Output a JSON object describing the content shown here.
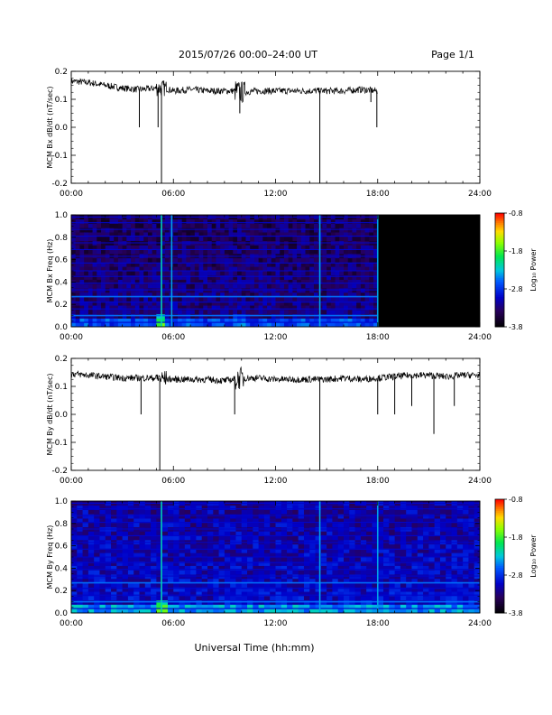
{
  "header": {
    "title": "2015/07/26  00:00–24:00 UT",
    "page": "Page 1/1"
  },
  "xaxis": {
    "label": "Universal Time (hh:mm)",
    "ticks": [
      "00:00",
      "06:00",
      "12:00",
      "18:00",
      "24:00"
    ],
    "range_hours": [
      0,
      24
    ]
  },
  "colorbar": {
    "title": "Log₁₀ Power",
    "ticks": [
      "-0.8",
      "-1.8",
      "-2.8",
      "-3.8"
    ],
    "range": [
      -3.8,
      -0.8
    ]
  },
  "chart_data": [
    {
      "type": "line",
      "ylabel": "MCM Bx dB/dt (nT/sec)",
      "yticks": [
        "0.2",
        "0.1",
        "0.0",
        "-0.1",
        "-0.2"
      ],
      "ylim": [
        -0.2,
        0.2
      ],
      "data_end_hour": 18.0,
      "series": [
        {
          "x": [
            0,
            1,
            2,
            3,
            4,
            5,
            5.5,
            6,
            7,
            8,
            9,
            9.7,
            10,
            11,
            12,
            13,
            14,
            15,
            16,
            17,
            18
          ],
          "y": [
            0.165,
            0.16,
            0.15,
            0.14,
            0.135,
            0.14,
            0.14,
            0.13,
            0.135,
            0.13,
            0.13,
            0.13,
            0.125,
            0.13,
            0.13,
            0.13,
            0.13,
            0.13,
            0.13,
            0.135,
            0.13
          ]
        }
      ],
      "spikes": [
        {
          "x": 4.0,
          "y": 0.0
        },
        {
          "x": 5.1,
          "y": 0.0
        },
        {
          "x": 5.3,
          "y": -0.2
        },
        {
          "x": 9.9,
          "y": 0.05
        },
        {
          "x": 14.6,
          "y": -0.2
        },
        {
          "x": 17.6,
          "y": 0.09
        },
        {
          "x": 17.95,
          "y": 0.0
        }
      ]
    },
    {
      "type": "heatmap",
      "ylabel": "MCM Bx Freq (Hz)",
      "yticks": [
        "1.0",
        "0.8",
        "0.6",
        "0.4",
        "0.2",
        "0.0"
      ],
      "ylim": [
        0,
        1.0
      ],
      "data_end_hour": 18.0,
      "harmonic_freqs": [
        0.04,
        0.1,
        0.16,
        0.22,
        0.27,
        0.33,
        0.39,
        0.45,
        0.5,
        0.57,
        0.63,
        0.69,
        0.75,
        0.81,
        0.87,
        0.93,
        0.98
      ],
      "bright_lines_hz": [
        0.1,
        0.27
      ],
      "vertical_events_hours": [
        5.3,
        5.9,
        14.6,
        18.0
      ],
      "burst_events": [
        {
          "start": 5.0,
          "end": 5.5,
          "level": -1.5
        },
        {
          "start": 9.6,
          "end": 10.3,
          "level": -2.2
        }
      ]
    },
    {
      "type": "line",
      "ylabel": "MCM By dB/dt (nT/sec)",
      "yticks": [
        "0.2",
        "0.1",
        "0.0",
        "-0.1",
        "-0.2"
      ],
      "ylim": [
        -0.2,
        0.2
      ],
      "data_end_hour": 24.0,
      "series": [
        {
          "x": [
            0,
            1,
            2,
            3,
            4,
            5,
            6,
            7,
            8,
            9,
            10,
            11,
            12,
            13,
            14,
            15,
            16,
            17,
            18,
            19,
            20,
            21,
            22,
            23,
            24
          ],
          "y": [
            0.145,
            0.14,
            0.135,
            0.13,
            0.13,
            0.13,
            0.125,
            0.125,
            0.125,
            0.12,
            0.13,
            0.13,
            0.125,
            0.125,
            0.125,
            0.125,
            0.13,
            0.125,
            0.13,
            0.135,
            0.14,
            0.14,
            0.135,
            0.14,
            0.14
          ]
        }
      ],
      "spikes": [
        {
          "x": 4.1,
          "y": 0.0
        },
        {
          "x": 5.2,
          "y": -0.2
        },
        {
          "x": 9.6,
          "y": 0.0
        },
        {
          "x": 14.6,
          "y": -0.2
        },
        {
          "x": 18.0,
          "y": 0.0
        },
        {
          "x": 19.0,
          "y": 0.0
        },
        {
          "x": 20.0,
          "y": 0.03
        },
        {
          "x": 21.3,
          "y": -0.07
        },
        {
          "x": 22.5,
          "y": 0.03
        }
      ]
    },
    {
      "type": "heatmap",
      "ylabel": "MCM By Freq (Hz)",
      "yticks": [
        "1.0",
        "0.8",
        "0.6",
        "0.4",
        "0.2",
        "0.0"
      ],
      "ylim": [
        0,
        1.0
      ],
      "data_end_hour": 24.0,
      "harmonic_freqs": [
        0.04,
        0.1,
        0.16,
        0.22,
        0.27,
        0.33,
        0.39,
        0.45,
        0.5,
        0.57,
        0.63,
        0.69,
        0.75,
        0.81,
        0.87,
        0.93,
        0.98
      ],
      "bright_lines_hz": [
        0.1,
        0.27
      ],
      "vertical_events_hours": [
        5.3,
        14.6,
        18.0
      ],
      "burst_events": [
        {
          "start": 5.0,
          "end": 5.5,
          "level": -1.5
        },
        {
          "start": 9.6,
          "end": 10.6,
          "level": -2.3
        }
      ]
    }
  ]
}
